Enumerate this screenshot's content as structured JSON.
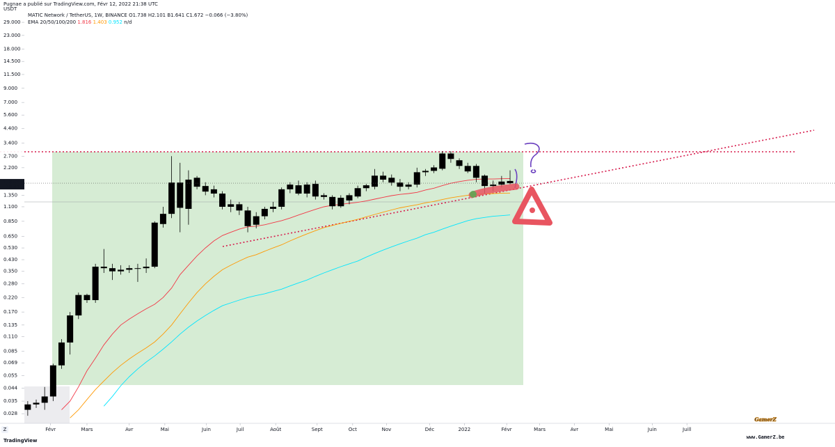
{
  "chart_data": {
    "type": "candlestick",
    "published": "Pugnae a publié sur TradingView.com, Févr 12, 2022 21:38 UTC",
    "title": "MATIC Network / TetherUS, 1W, BINANCE",
    "ohlc_text": "O1.738 H2.101 B1.641 C1.672 −0.066 (−3.80%)",
    "indicator_title": "EMA 20/50/100/200",
    "indicator_na": "n/d",
    "unit": "USDT",
    "axis_button": "Z",
    "brand": "TradingView",
    "watermark": "GamerZ",
    "watermark_url": "www.GamerZ.be",
    "last_price": 1.672,
    "countdown": "1d 3h",
    "log_scale": true,
    "grid": false,
    "candle_color": "#000000",
    "ylim": [
      0.0236,
      43.1
    ],
    "xlim": [
      -0.4,
      95.4
    ],
    "yticks": [
      {
        "value": 29,
        "label": "29.000"
      },
      {
        "value": 23,
        "label": "23.000"
      },
      {
        "value": 18,
        "label": "18.000"
      },
      {
        "value": 14.5,
        "label": "14.500"
      },
      {
        "value": 11.5,
        "label": "11.500"
      },
      {
        "value": 9,
        "label": "9.000"
      },
      {
        "value": 7,
        "label": "7.000"
      },
      {
        "value": 5.6,
        "label": "5.600"
      },
      {
        "value": 4.4,
        "label": "4.400"
      },
      {
        "value": 3.4,
        "label": "3.400"
      },
      {
        "value": 2.7,
        "label": "2.700"
      },
      {
        "value": 2.2,
        "label": "2.200"
      },
      {
        "value": 1.35,
        "label": "1.350"
      },
      {
        "value": 1.1,
        "label": "1.100"
      },
      {
        "value": 0.85,
        "label": "0.850"
      },
      {
        "value": 0.65,
        "label": "0.650"
      },
      {
        "value": 0.53,
        "label": "0.530"
      },
      {
        "value": 0.43,
        "label": "0.430"
      },
      {
        "value": 0.35,
        "label": "0.350"
      },
      {
        "value": 0.28,
        "label": "0.280"
      },
      {
        "value": 0.22,
        "label": "0.220"
      },
      {
        "value": 0.17,
        "label": "0.170"
      },
      0.135,
      {
        "value": 0.11,
        "label": "0.110"
      },
      0.085,
      0.069,
      0.055,
      0.044,
      0.035,
      0.028
    ],
    "xticks": [
      {
        "value": 2.7,
        "label": "Févr"
      },
      {
        "value": 7.0,
        "label": "Mars"
      },
      {
        "value": 12.0,
        "label": "Avr"
      },
      {
        "value": 16.2,
        "label": "Mai"
      },
      {
        "value": 21.1,
        "label": "Juin"
      },
      {
        "value": 25.1,
        "label": "Juil"
      },
      {
        "value": 29.3,
        "label": "Août"
      },
      {
        "value": 34.2,
        "label": "Sept"
      },
      {
        "value": 38.4,
        "label": "Oct"
      },
      {
        "value": 42.4,
        "label": "Nov"
      },
      {
        "value": 47.5,
        "label": "Déc"
      },
      {
        "value": 51.6,
        "label": "2022"
      },
      {
        "value": 56.6,
        "label": "Févr"
      },
      {
        "value": 60.5,
        "label": "Mars"
      },
      {
        "value": 64.6,
        "label": "Avr"
      },
      {
        "value": 68.7,
        "label": "Mai"
      },
      {
        "value": 73.8,
        "label": "Juin"
      },
      {
        "value": 77.9,
        "label": "Juill"
      }
    ],
    "ohlc": [
      [
        0.03,
        0.035,
        0.027,
        0.033
      ],
      [
        0.033,
        0.036,
        0.031,
        0.034
      ],
      [
        0.034,
        0.045,
        0.03,
        0.038
      ],
      [
        0.038,
        0.068,
        0.035,
        0.066
      ],
      [
        0.066,
        0.105,
        0.062,
        0.099
      ],
      [
        0.099,
        0.17,
        0.08,
        0.16
      ],
      [
        0.16,
        0.24,
        0.15,
        0.23
      ],
      [
        0.23,
        0.235,
        0.2,
        0.21
      ],
      [
        0.21,
        0.4,
        0.2,
        0.38
      ],
      [
        0.38,
        0.52,
        0.34,
        0.37
      ],
      [
        0.37,
        0.4,
        0.3,
        0.35
      ],
      [
        0.35,
        0.39,
        0.33,
        0.36
      ],
      [
        0.36,
        0.39,
        0.34,
        0.37
      ],
      [
        0.37,
        0.4,
        0.29,
        0.37
      ],
      [
        0.37,
        0.44,
        0.34,
        0.38
      ],
      [
        0.38,
        0.85,
        0.37,
        0.83
      ],
      [
        0.81,
        1.1,
        0.76,
        0.97
      ],
      [
        0.97,
        2.7,
        0.9,
        1.69
      ],
      [
        1.69,
        2.4,
        0.7,
        1.08
      ],
      [
        1.06,
        2.1,
        0.8,
        1.78
      ],
      [
        1.84,
        1.9,
        1.5,
        1.57
      ],
      [
        1.59,
        1.7,
        1.35,
        1.44
      ],
      [
        1.5,
        1.6,
        1.3,
        1.39
      ],
      [
        1.39,
        1.45,
        1.05,
        1.1
      ],
      [
        1.1,
        1.25,
        1.0,
        1.15
      ],
      [
        1.15,
        1.2,
        0.95,
        1.03
      ],
      [
        1.03,
        1.1,
        0.7,
        0.78
      ],
      [
        0.8,
        1.0,
        0.75,
        0.93
      ],
      [
        0.93,
        1.1,
        0.88,
        1.06
      ],
      [
        1.06,
        1.2,
        1.0,
        1.1
      ],
      [
        1.1,
        1.55,
        1.05,
        1.5
      ],
      [
        1.5,
        1.7,
        1.4,
        1.63
      ],
      [
        1.61,
        1.75,
        1.35,
        1.39
      ],
      [
        1.39,
        1.7,
        1.3,
        1.63
      ],
      [
        1.65,
        1.75,
        1.25,
        1.32
      ],
      [
        1.35,
        1.4,
        1.25,
        1.31
      ],
      [
        1.31,
        1.35,
        1.05,
        1.11
      ],
      [
        1.11,
        1.35,
        1.08,
        1.29
      ],
      [
        1.23,
        1.4,
        1.15,
        1.35
      ],
      [
        1.32,
        1.6,
        1.28,
        1.53
      ],
      [
        1.53,
        1.65,
        1.45,
        1.61
      ],
      [
        1.57,
        2.15,
        1.5,
        1.91
      ],
      [
        1.91,
        2.05,
        1.7,
        1.78
      ],
      [
        1.84,
        1.95,
        1.6,
        1.69
      ],
      [
        1.69,
        1.8,
        1.45,
        1.57
      ],
      [
        1.57,
        1.7,
        1.5,
        1.63
      ],
      [
        1.63,
        2.2,
        1.55,
        2.03
      ],
      [
        2.03,
        2.15,
        1.9,
        2.08
      ],
      [
        2.08,
        2.3,
        2.0,
        2.21
      ],
      [
        2.16,
        2.95,
        2.1,
        2.83
      ],
      [
        2.83,
        2.95,
        2.4,
        2.57
      ],
      [
        2.51,
        2.6,
        2.15,
        2.27
      ],
      [
        2.27,
        2.4,
        2.0,
        2.06
      ],
      [
        2.27,
        2.35,
        1.7,
        1.84
      ],
      [
        1.91,
        1.95,
        1.4,
        1.59
      ],
      [
        1.59,
        1.75,
        1.45,
        1.63
      ],
      [
        1.63,
        1.9,
        1.55,
        1.72
      ],
      [
        1.738,
        2.101,
        1.641,
        1.672
      ]
    ],
    "indicators": [
      {
        "color": "#f23645",
        "values": [
          null,
          null,
          null,
          null,
          0.03,
          0.035,
          0.045,
          0.06,
          0.075,
          0.095,
          0.115,
          0.135,
          0.15,
          0.165,
          0.18,
          0.195,
          0.22,
          0.26,
          0.33,
          0.39,
          0.46,
          0.53,
          0.6,
          0.66,
          0.7,
          0.74,
          0.77,
          0.78,
          0.8,
          0.83,
          0.86,
          0.9,
          0.95,
          1.0,
          1.05,
          1.1,
          1.13,
          1.15,
          1.17,
          1.19,
          1.22,
          1.26,
          1.3,
          1.34,
          1.37,
          1.39,
          1.42,
          1.48,
          1.53,
          1.6,
          1.67,
          1.72,
          1.76,
          1.79,
          1.8,
          1.8,
          1.81,
          1.816
        ]
      },
      {
        "color": "#ff9800",
        "values": [
          null,
          null,
          null,
          null,
          null,
          0.026,
          0.03,
          0.036,
          0.043,
          0.05,
          0.058,
          0.066,
          0.074,
          0.082,
          0.09,
          0.1,
          0.115,
          0.135,
          0.165,
          0.2,
          0.24,
          0.28,
          0.32,
          0.36,
          0.39,
          0.42,
          0.45,
          0.47,
          0.5,
          0.53,
          0.56,
          0.6,
          0.64,
          0.68,
          0.72,
          0.76,
          0.79,
          0.82,
          0.85,
          0.88,
          0.92,
          0.96,
          1.0,
          1.04,
          1.08,
          1.11,
          1.14,
          1.18,
          1.21,
          1.25,
          1.29,
          1.32,
          1.35,
          1.37,
          1.38,
          1.39,
          1.4,
          1.403
        ]
      },
      {
        "color": "#00e5ff",
        "values": [
          null,
          null,
          null,
          null,
          null,
          null,
          null,
          null,
          null,
          0.032,
          0.038,
          0.046,
          0.054,
          0.062,
          0.07,
          0.078,
          0.088,
          0.1,
          0.115,
          0.13,
          0.145,
          0.16,
          0.175,
          0.19,
          0.2,
          0.21,
          0.22,
          0.228,
          0.235,
          0.245,
          0.255,
          0.27,
          0.285,
          0.3,
          0.32,
          0.34,
          0.36,
          0.38,
          0.4,
          0.42,
          0.45,
          0.48,
          0.51,
          0.54,
          0.57,
          0.6,
          0.63,
          0.67,
          0.7,
          0.74,
          0.78,
          0.82,
          0.86,
          0.89,
          0.91,
          0.93,
          0.94,
          0.952
        ]
      }
    ]
  }
}
